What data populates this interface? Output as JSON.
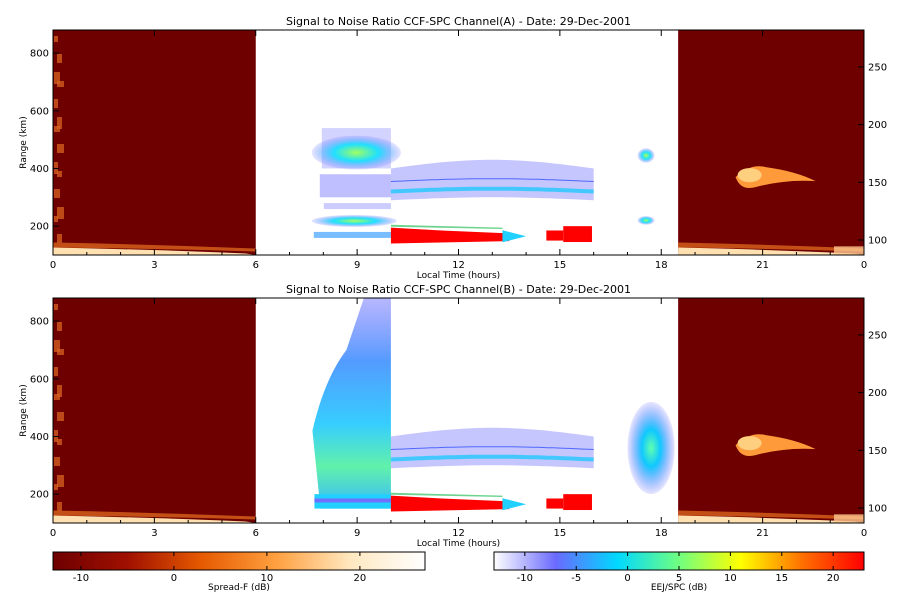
{
  "chart_data": [
    {
      "type": "heatmap",
      "title": "Signal to Noise Ratio CCF-SPC Channel(A) - Date: 29-Dec-2001",
      "xlabel": "Local Time (hours)",
      "ylabel": "Range (km)",
      "xlim": [
        0,
        24
      ],
      "xticks": [
        "0",
        "3",
        "6",
        "9",
        "12",
        "15",
        "18",
        "21",
        "0"
      ],
      "ylim": [
        100,
        880
      ],
      "yticks": [
        200,
        400,
        600,
        800
      ],
      "y2lim": [
        87,
        282
      ],
      "y2ticks": [
        100,
        150,
        200,
        250
      ],
      "spread_f_windows": [
        [
          0,
          6
        ],
        [
          18.5,
          24
        ]
      ],
      "features": [
        {
          "t": [
            7.6,
            10.0
          ],
          "range": [
            150,
            540
          ],
          "kind": "ionospheric echoes"
        },
        {
          "t": [
            10.0,
            16.0
          ],
          "range": [
            140,
            200
          ],
          "kind": "strong EEJ echo",
          "snr_db": 22
        },
        {
          "t": [
            10.0,
            16.0
          ],
          "range": [
            280,
            420
          ],
          "kind": "weak echoes"
        },
        {
          "t": [
            17.3,
            17.8
          ],
          "range": [
            420,
            470
          ],
          "kind": "echo"
        },
        {
          "t": [
            17.3,
            17.8
          ],
          "range": [
            205,
            235
          ],
          "kind": "echo"
        }
      ]
    },
    {
      "type": "heatmap",
      "title": "Signal to Noise Ratio CCF-SPC Channel(B) - Date: 29-Dec-2001",
      "xlabel": "Local Time (hours)",
      "ylabel": "Range (km)",
      "xlim": [
        0,
        24
      ],
      "xticks": [
        "0",
        "3",
        "6",
        "9",
        "12",
        "15",
        "18",
        "21",
        "0"
      ],
      "ylim": [
        100,
        880
      ],
      "yticks": [
        200,
        400,
        600,
        800
      ],
      "y2lim": [
        87,
        282
      ],
      "y2ticks": [
        100,
        150,
        200,
        250
      ],
      "spread_f_windows": [
        [
          0,
          6
        ],
        [
          18.5,
          24
        ]
      ],
      "features": [
        {
          "t": [
            7.5,
            10.0
          ],
          "range": [
            150,
            880
          ],
          "kind": "spread echoes"
        },
        {
          "t": [
            10.0,
            16.0
          ],
          "range": [
            140,
            200
          ],
          "kind": "strong EEJ echo",
          "snr_db": 22
        },
        {
          "t": [
            10.0,
            16.0
          ],
          "range": [
            280,
            420
          ],
          "kind": "weak echoes"
        },
        {
          "t": [
            17.0,
            18.4
          ],
          "range": [
            200,
            520
          ],
          "kind": "echo"
        }
      ]
    }
  ],
  "colorbars": [
    {
      "label": "Spread-F (dB)",
      "ticks": [
        "-10",
        "0",
        "10",
        "20"
      ],
      "range": [
        -13,
        27
      ],
      "colors": [
        "#6e0000",
        "#a01000",
        "#e65a00",
        "#ffa040",
        "#ffe8c0",
        "#ffffff"
      ]
    },
    {
      "label": "EEJ/SPC (dB)",
      "ticks": [
        "-10",
        "-5",
        "0",
        "5",
        "10",
        "15",
        "20"
      ],
      "range": [
        -13,
        23
      ],
      "colors": [
        "#ffffff",
        "#6a6aff",
        "#00d8ff",
        "#70ff80",
        "#ffff00",
        "#ff7000",
        "#ff0000"
      ]
    }
  ]
}
